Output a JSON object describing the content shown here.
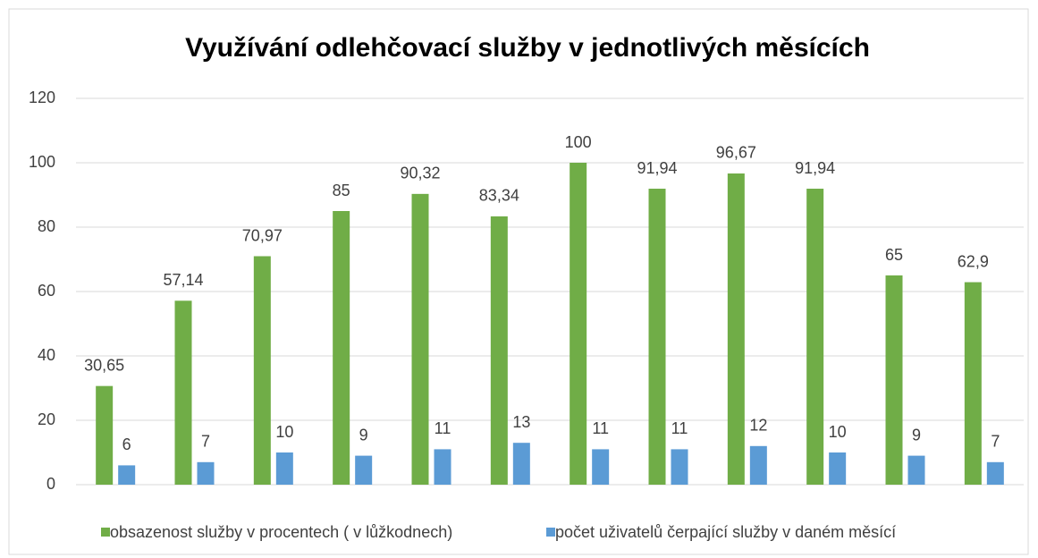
{
  "chart_data": {
    "type": "bar",
    "title": "Využívání odlehčovací služby v jednotlivých měsících",
    "categories": [
      null,
      null,
      null,
      null,
      null,
      null,
      null,
      null,
      null,
      null,
      null,
      null
    ],
    "series": [
      {
        "name": "obsazenost služby v procentech ( v lůžkodnech)",
        "color": "#70ad47",
        "values": [
          30.65,
          57.14,
          70.97,
          85,
          90.32,
          83.34,
          100,
          91.94,
          96.67,
          91.94,
          65,
          62.9
        ],
        "value_labels": [
          "30,65",
          "57,14",
          "70,97",
          "85",
          "90,32",
          "83,34",
          "100",
          "91,94",
          "96,67",
          "91,94",
          "65",
          "62,9"
        ]
      },
      {
        "name": "počet uživatelů čerpající služby v daném měsící",
        "color": "#5b9bd5",
        "values": [
          6,
          7,
          10,
          9,
          11,
          13,
          11,
          11,
          12,
          10,
          9,
          7
        ]
      }
    ],
    "ylim": [
      0,
      120
    ],
    "yticks": [
      0,
      20,
      40,
      60,
      80,
      100,
      120
    ],
    "grid": true,
    "legend": "bottom"
  }
}
